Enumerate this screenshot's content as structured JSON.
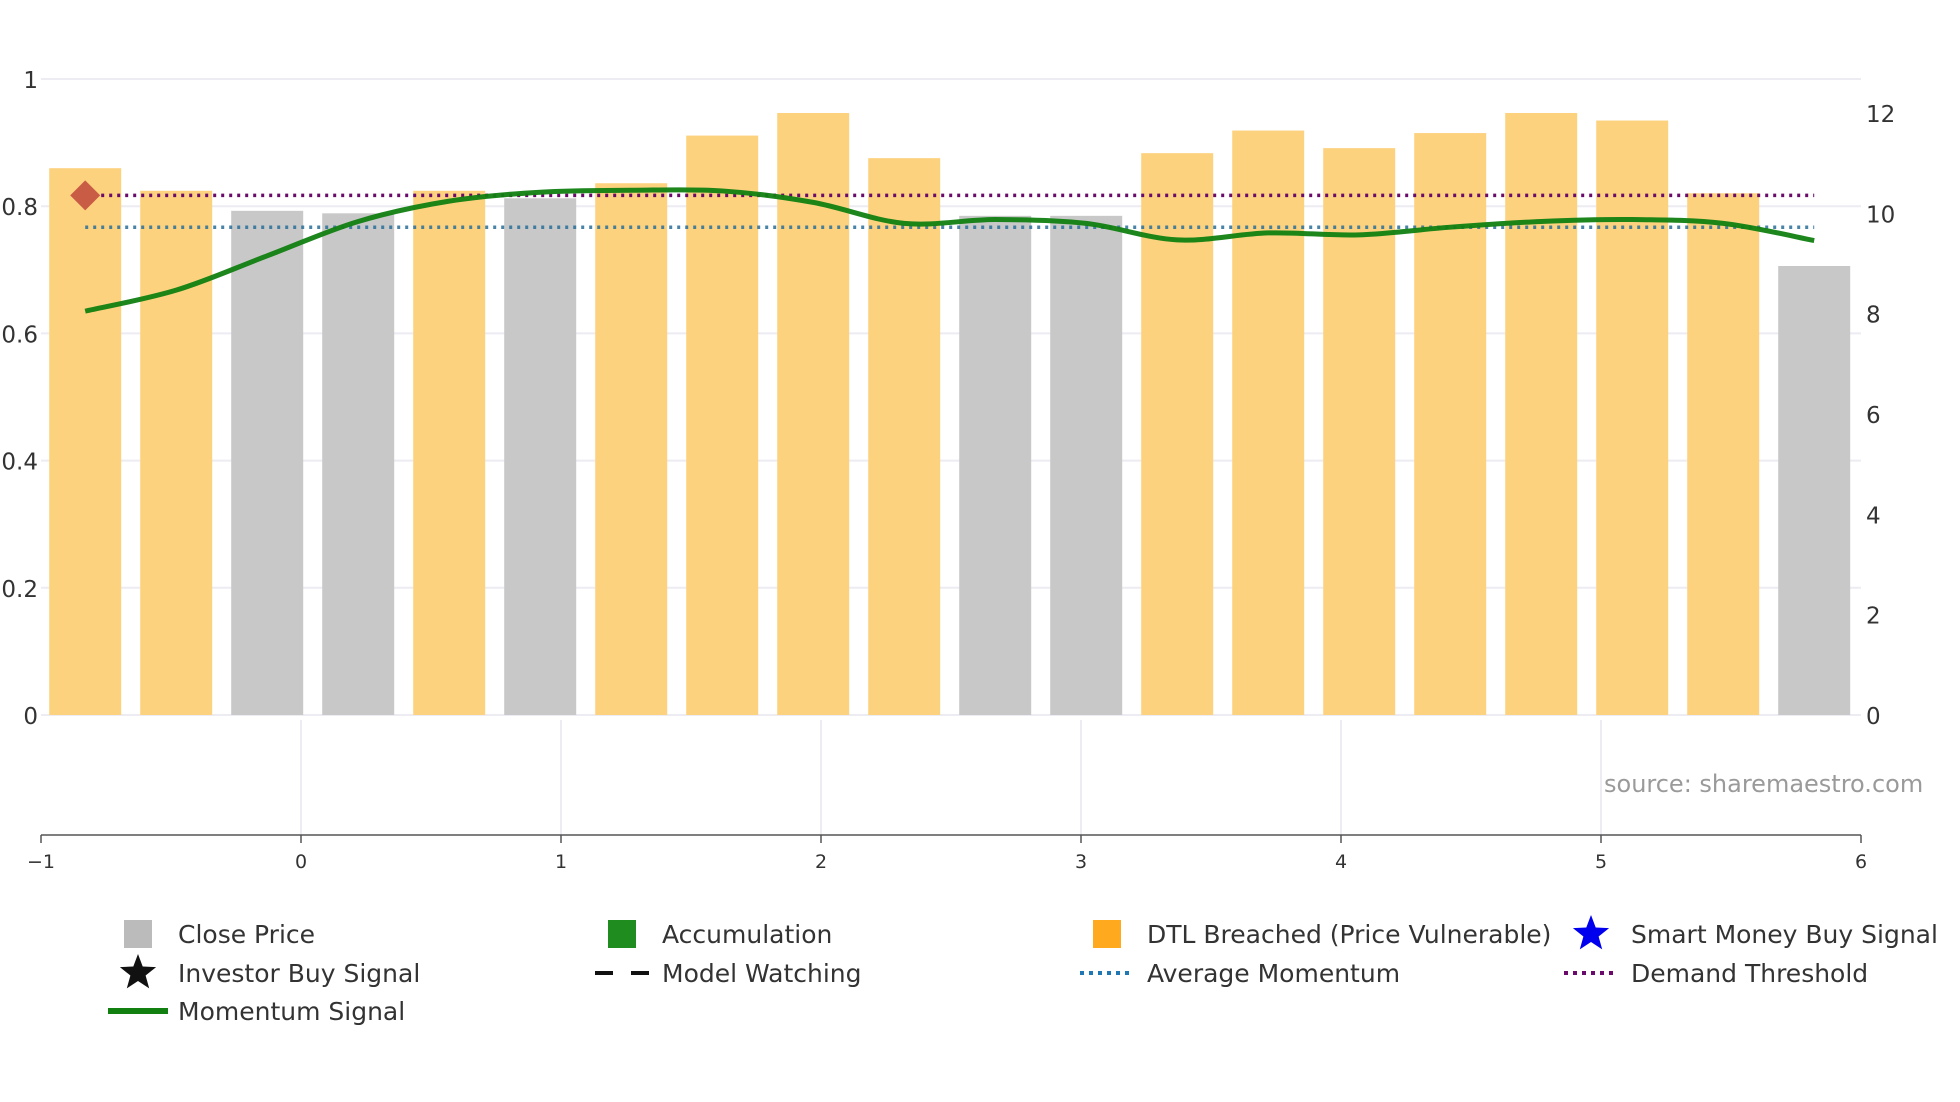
{
  "chart_data": {
    "type": "bar",
    "x_axis": {
      "range": [
        -1,
        6
      ],
      "ticks": [
        -1,
        0,
        1,
        2,
        3,
        4,
        5,
        6
      ],
      "tick_labels": [
        "−1",
        "0",
        "1",
        "2",
        "3",
        "4",
        "5",
        "6"
      ]
    },
    "y_left": {
      "range": [
        0,
        1
      ],
      "ticks": [
        0,
        0.2,
        0.4,
        0.6,
        0.8,
        1
      ],
      "tick_labels": [
        "0",
        "0.2",
        "0.4",
        "0.6",
        "0.8",
        "1"
      ]
    },
    "y_right": {
      "range": [
        0,
        12
      ],
      "ticks": [
        0,
        2,
        4,
        6,
        8,
        10,
        12
      ],
      "tick_labels": [
        "0",
        "2",
        "4",
        "6",
        "8",
        "10",
        "12"
      ]
    },
    "bars": {
      "x": [
        -0.83,
        -0.48,
        -0.13,
        0.22,
        0.57,
        0.92,
        1.27,
        1.62,
        1.97,
        2.32,
        2.67,
        3.02,
        3.37,
        3.72,
        4.07,
        4.42,
        4.77,
        5.12,
        5.47,
        5.82
      ],
      "values": [
        10.9,
        10.45,
        10.05,
        10.0,
        10.45,
        10.3,
        10.6,
        11.55,
        12.0,
        11.1,
        9.95,
        9.95,
        11.2,
        11.65,
        11.3,
        11.6,
        12.0,
        11.85,
        10.4,
        8.95
      ],
      "status": [
        "dtl",
        "dtl",
        "close",
        "close",
        "dtl",
        "close",
        "dtl",
        "dtl",
        "dtl",
        "dtl",
        "close",
        "close",
        "dtl",
        "dtl",
        "dtl",
        "dtl",
        "dtl",
        "dtl",
        "dtl",
        "close"
      ]
    },
    "momentum_signal": {
      "x": [
        -0.83,
        -0.48,
        -0.13,
        0.22,
        0.57,
        0.92,
        1.27,
        1.62,
        1.97,
        2.32,
        2.67,
        3.02,
        3.37,
        3.72,
        4.07,
        4.42,
        4.77,
        5.12,
        5.47,
        5.82
      ],
      "y": [
        0.635,
        0.668,
        0.722,
        0.776,
        0.808,
        0.822,
        0.825,
        0.824,
        0.806,
        0.773,
        0.779,
        0.773,
        0.747,
        0.758,
        0.755,
        0.767,
        0.776,
        0.779,
        0.773,
        0.746
      ]
    },
    "average_momentum": 0.767,
    "demand_threshold": 0.817,
    "accumulation_marker": {
      "x": -0.83,
      "y": 0.817
    },
    "lower_panel_gridlines_x": [
      0,
      1,
      2,
      3,
      4,
      5
    ],
    "legend": [
      {
        "label": "Close Price",
        "symbol": "square",
        "color": "#bbbbbb"
      },
      {
        "label": "Accumulation",
        "symbol": "square",
        "color": "#1e8c1e"
      },
      {
        "label": "DTL Breached (Price Vulnerable)",
        "symbol": "square",
        "color": "#ffa91e"
      },
      {
        "label": "Smart Money Buy Signal",
        "symbol": "star",
        "color": "#0000ee"
      },
      {
        "label": "Investor Buy Signal",
        "symbol": "star",
        "color": "#111111"
      },
      {
        "label": "Model Watching",
        "symbol": "dash",
        "color": "#111111"
      },
      {
        "label": "Average Momentum",
        "symbol": "dot",
        "color": "#1f77b4"
      },
      {
        "label": "Demand Threshold",
        "symbol": "dot",
        "color": "#6a0a6a"
      },
      {
        "label": "Momentum Signal",
        "symbol": "line",
        "color": "#118011"
      }
    ],
    "colors": {
      "close": "#c8c8c8",
      "dtl": "#fdd27f",
      "momentum": "#118011",
      "average_momentum": "#2a6e9a",
      "demand_threshold": "#6a0a6a",
      "marker": "#c95c45",
      "grid": "#ececf2"
    },
    "source_note": "source: sharemaestro.com"
  }
}
